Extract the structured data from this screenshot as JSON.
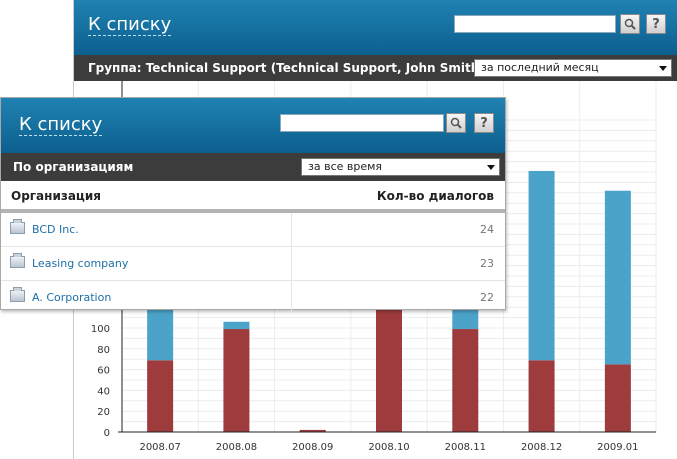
{
  "back_window": {
    "header": {
      "back_link": "К списку",
      "search_value": "",
      "help_label": "?"
    },
    "subbar": {
      "group_label": "Группа: Technical Support (Technical Support, John Smith)",
      "period_selected": "за последний месяц"
    }
  },
  "front_window": {
    "header": {
      "back_link": "К списку",
      "search_value": "",
      "help_label": "?"
    },
    "subbar": {
      "label": "По организациям",
      "period_selected": "за все время"
    },
    "table": {
      "columns": [
        "Организация",
        "Кол-во диалогов"
      ],
      "rows": [
        {
          "name": "BCD Inc.",
          "count": "24"
        },
        {
          "name": "Leasing company",
          "count": "23"
        },
        {
          "name": "A. Corporation",
          "count": "22"
        }
      ]
    }
  },
  "chart_data": {
    "type": "bar",
    "stacked": true,
    "categories": [
      "2008.07",
      "2008.08",
      "2008.09",
      "2008.10",
      "2008.11",
      "2008.12",
      "2009.01"
    ],
    "series": [
      {
        "color": "#9e3b3d",
        "values": [
          69,
          99,
          2,
          120,
          99,
          69,
          65
        ]
      },
      {
        "color": "#4ba3c9",
        "values": [
          54,
          7,
          0,
          0,
          61,
          182,
          167
        ]
      }
    ],
    "y_ticks": [
      0,
      20,
      40,
      60,
      80,
      100
    ],
    "ylim": [
      0,
      300
    ],
    "grid": true,
    "xlabel": "",
    "ylabel": "",
    "title": ""
  }
}
